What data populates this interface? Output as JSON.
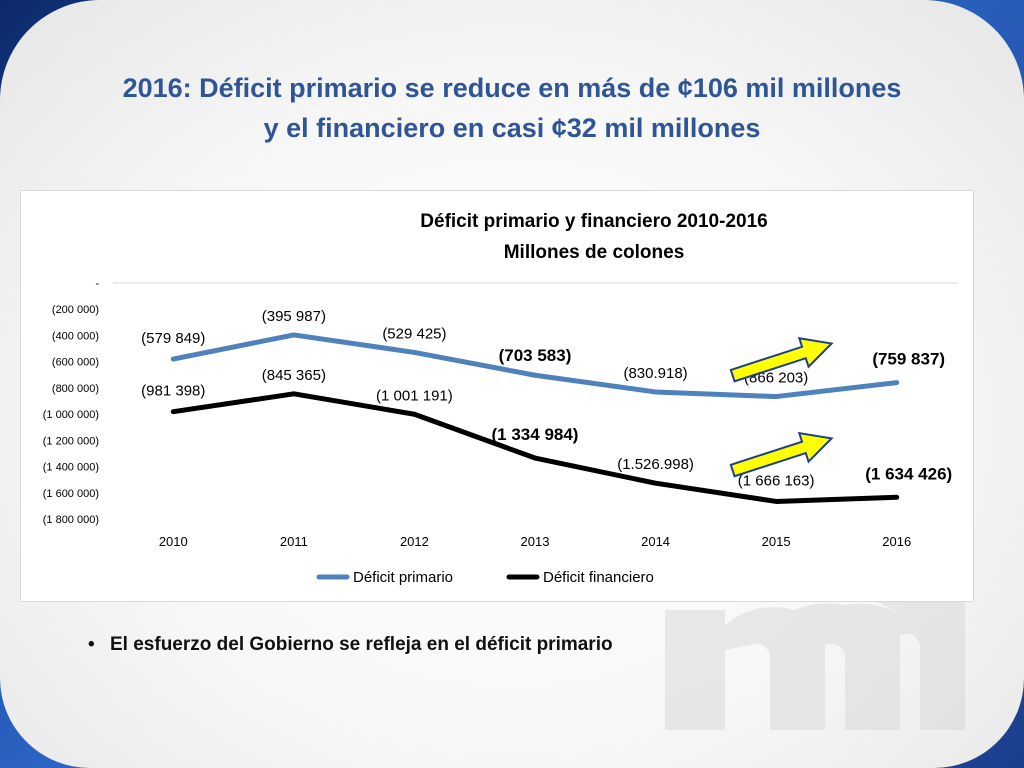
{
  "slide": {
    "title_line1": "2016: Déficit primario se  reduce en más de ¢106 mil millones",
    "title_line2": "y el financiero en casi ¢32 mil millones",
    "bullet": "El esfuerzo del Gobierno se refleja en el déficit primario",
    "bullet_marker": "•"
  },
  "colors": {
    "title": "#2f5597",
    "primario": "#4f81bd",
    "financiero": "#000000",
    "arrow_fill": "#ffff00",
    "arrow_stroke": "#1f3f8a"
  },
  "chart_data": {
    "type": "line",
    "title": "Déficit primario y financiero 2010-2016",
    "subtitle": "Millones de colones",
    "x": [
      "2010",
      "2011",
      "2012",
      "2013",
      "2014",
      "2015",
      "2016"
    ],
    "ylim": [
      -1800000,
      0
    ],
    "yticks": [
      0,
      -200000,
      -400000,
      -600000,
      -800000,
      -1000000,
      -1200000,
      -1400000,
      -1600000,
      -1800000
    ],
    "ytick_labels": [
      "-",
      "(200 000)",
      "(400 000)",
      "(600 000)",
      "(800 000)",
      "(1 000 000)",
      "(1 200 000)",
      "(1 400 000)",
      "(1 600 000)",
      "(1 800 000)"
    ],
    "grid": "top-line-only",
    "legend_position": "bottom",
    "series": [
      {
        "name": "Déficit primario",
        "color": "#4f81bd",
        "values": [
          -579849,
          -395987,
          -529425,
          -703583,
          -830918,
          -866203,
          -759837
        ],
        "labels": [
          "(579 849)",
          "(395 987)",
          "(529 425)",
          "(703 583)",
          "(830.918)",
          "(866 203)",
          "(759 837)"
        ],
        "bold_labels": [
          false,
          false,
          false,
          true,
          false,
          false,
          true
        ]
      },
      {
        "name": "Déficit financiero",
        "color": "#000000",
        "values": [
          -981398,
          -845365,
          -1001191,
          -1334984,
          -1526998,
          -1666163,
          -1634426
        ],
        "labels": [
          "(981 398)",
          "(845 365)",
          "(1 001 191)",
          "(1 334 984)",
          "(1.526.998)",
          "(1 666 163)",
          "(1 634 426)"
        ],
        "bold_labels": [
          false,
          false,
          false,
          true,
          false,
          false,
          true
        ]
      }
    ],
    "annotations": [
      "up-arrow-primario-2015-2016",
      "up-arrow-financiero-2015-2016"
    ]
  }
}
